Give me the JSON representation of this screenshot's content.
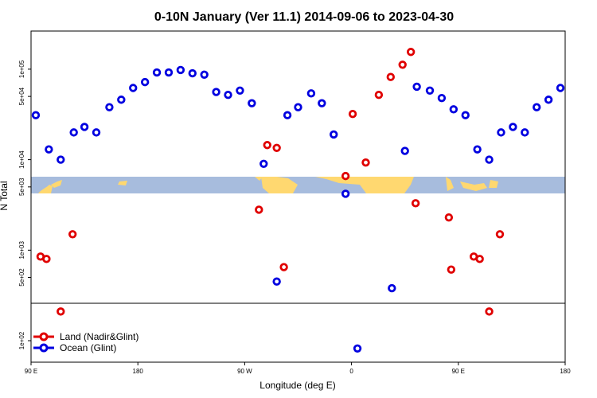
{
  "chart_data": {
    "type": "scatter",
    "title": "0-10N January (Ver 11.1)   2014-09-06 to 2023-04-30",
    "xlabel": "Longitude (deg E)",
    "ylabel": "N Total",
    "y_scale": "log",
    "x_ticks": [
      {
        "pos": 90,
        "label": "90 E"
      },
      {
        "pos": 180,
        "label": "180"
      },
      {
        "pos": 270,
        "label": "90 W"
      },
      {
        "pos": 360,
        "label": "0"
      },
      {
        "pos": 450,
        "label": "90 E"
      },
      {
        "pos": 540,
        "label": "180"
      }
    ],
    "y_ticks": [
      {
        "value": 100,
        "label": "1e+02"
      },
      {
        "value": 500,
        "label": "5e+02"
      },
      {
        "value": 1000,
        "label": "1e+03"
      },
      {
        "value": 5000,
        "label": "5e+03"
      },
      {
        "value": 10000,
        "label": "1e+04"
      },
      {
        "value": 50000,
        "label": "5e+04"
      },
      {
        "value": 100000,
        "label": "1e+05"
      }
    ],
    "legend": {
      "position": "bottom-left"
    },
    "series": [
      {
        "name": "Land (Nadir&Glint)",
        "color": "#e00000",
        "points": [
          [
            98,
            850
          ],
          [
            103,
            800
          ],
          [
            115,
            210
          ],
          [
            125,
            1500
          ],
          [
            282,
            2800
          ],
          [
            289,
            14500
          ],
          [
            297,
            13500
          ],
          [
            303,
            650
          ],
          [
            355,
            6600
          ],
          [
            361,
            32000
          ],
          [
            372,
            9300
          ],
          [
            383,
            52000
          ],
          [
            393,
            82000
          ],
          [
            403,
            112000
          ],
          [
            410,
            155000
          ],
          [
            414,
            3300
          ],
          [
            442,
            2300
          ],
          [
            444,
            610
          ],
          [
            463,
            850
          ],
          [
            468,
            800
          ],
          [
            476,
            210
          ],
          [
            485,
            1500
          ]
        ]
      },
      {
        "name": "Ocean (Glint)",
        "color": "#0000e0",
        "points": [
          [
            94,
            31000
          ],
          [
            105,
            13000
          ],
          [
            115,
            10000
          ],
          [
            126,
            20000
          ],
          [
            135,
            23000
          ],
          [
            145,
            20000
          ],
          [
            156,
            38000
          ],
          [
            166,
            46000
          ],
          [
            176,
            62000
          ],
          [
            186,
            72000
          ],
          [
            196,
            92000
          ],
          [
            206,
            92000
          ],
          [
            216,
            98000
          ],
          [
            226,
            90000
          ],
          [
            236,
            87000
          ],
          [
            246,
            56000
          ],
          [
            256,
            52000
          ],
          [
            266,
            58000
          ],
          [
            276,
            42000
          ],
          [
            286,
            9000
          ],
          [
            297,
            450
          ],
          [
            306,
            31000
          ],
          [
            315,
            38000
          ],
          [
            326,
            54000
          ],
          [
            335,
            42000
          ],
          [
            345,
            19000
          ],
          [
            355,
            4200
          ],
          [
            365,
            82
          ],
          [
            394,
            380
          ],
          [
            405,
            12500
          ],
          [
            415,
            64000
          ],
          [
            426,
            58000
          ],
          [
            436,
            48000
          ],
          [
            446,
            36000
          ],
          [
            456,
            31000
          ],
          [
            466,
            13000
          ],
          [
            476,
            10000
          ],
          [
            486,
            20000
          ],
          [
            496,
            23000
          ],
          [
            506,
            20000
          ],
          [
            516,
            38000
          ],
          [
            526,
            46000
          ],
          [
            536,
            62000
          ]
        ]
      }
    ]
  }
}
